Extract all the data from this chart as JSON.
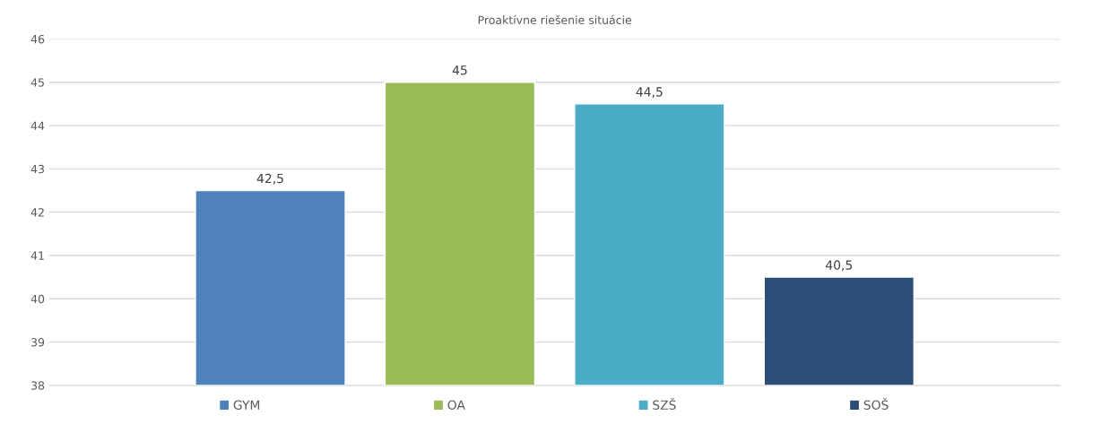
{
  "chart_data": {
    "type": "bar",
    "title": "Proaktívne riešenie situácie",
    "categories": [
      null
    ],
    "series": [
      {
        "name": "GYM",
        "color": "#4f81bd",
        "values": [
          42.5
        ],
        "value_labels": [
          "42,5"
        ]
      },
      {
        "name": "OA",
        "color": "#9bbb59",
        "values": [
          45
        ],
        "value_labels": [
          "45"
        ]
      },
      {
        "name": "SZŠ",
        "color": "#4bacc6",
        "values": [
          44.5
        ],
        "value_labels": [
          "44,5"
        ]
      },
      {
        "name": "SOŠ",
        "color": "#2c4d75",
        "values": [
          40.5
        ],
        "value_labels": [
          "40,5"
        ]
      }
    ],
    "ylim": [
      38,
      46
    ],
    "yticks": [
      38,
      39,
      40,
      41,
      42,
      43,
      44,
      45,
      46
    ],
    "grid": "y",
    "legend": "bottom"
  }
}
